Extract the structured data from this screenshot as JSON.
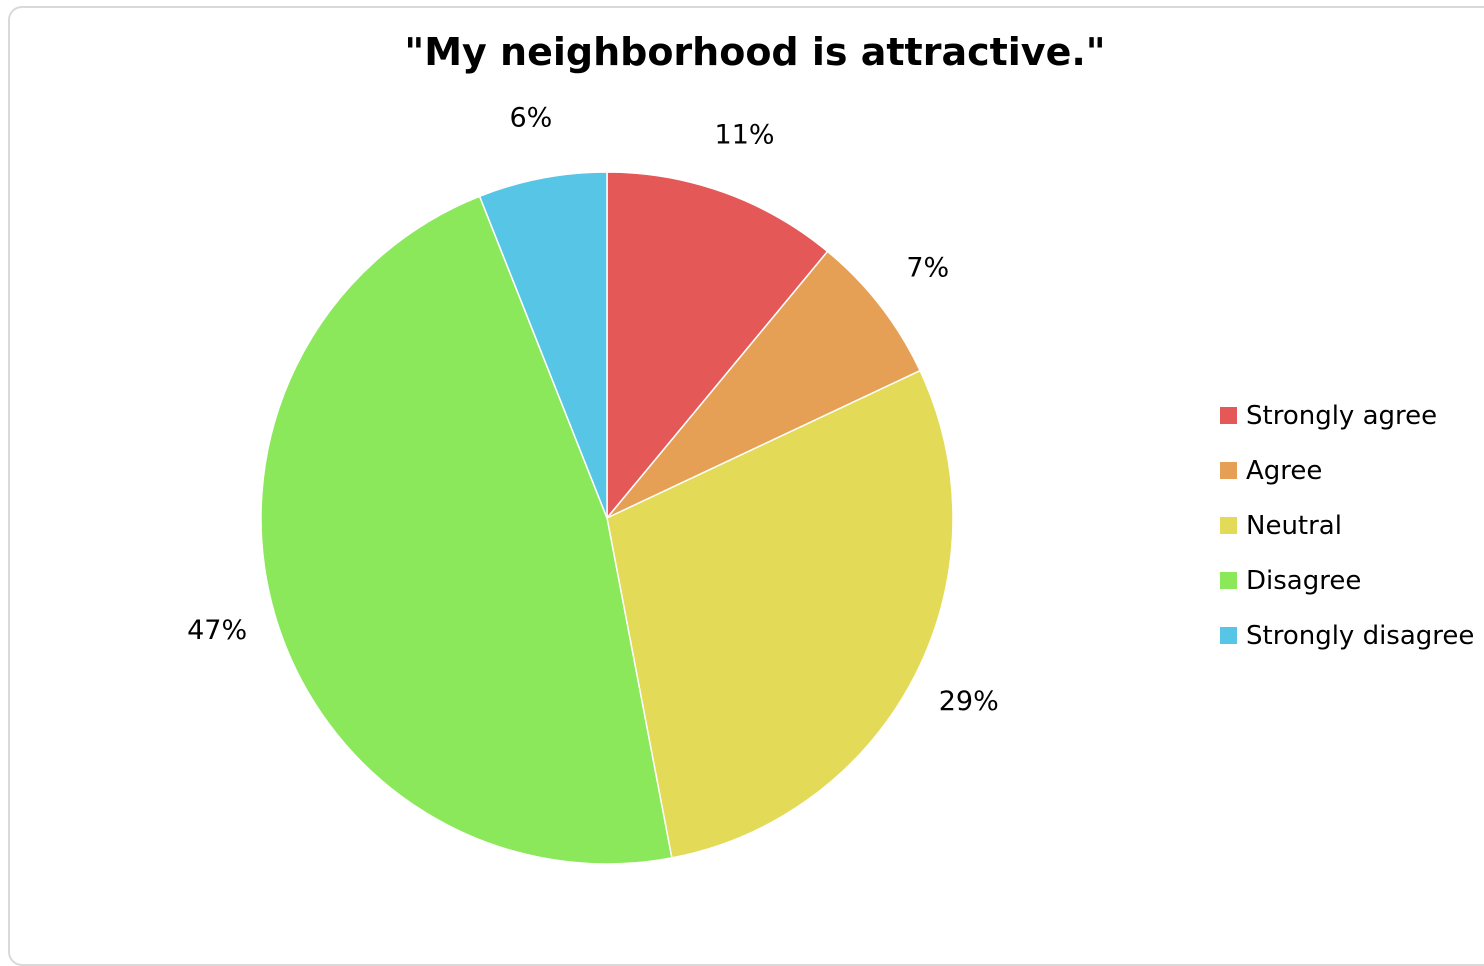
{
  "chart_data": {
    "type": "pie",
    "title": "\"My neighborhood is attractive.\"",
    "categories": [
      "Strongly agree",
      "Agree",
      "Neutral",
      "Disagree",
      "Strongly disagree"
    ],
    "values": [
      11,
      7,
      29,
      47,
      6
    ],
    "value_labels": [
      "11%",
      "7%",
      "29%",
      "47%",
      "6%"
    ],
    "colors": [
      "#e55858",
      "#e5a055",
      "#e3da57",
      "#8ae85a",
      "#57c5e5"
    ],
    "legend_position": "right",
    "start_angle": "12 o'clock, clockwise"
  }
}
